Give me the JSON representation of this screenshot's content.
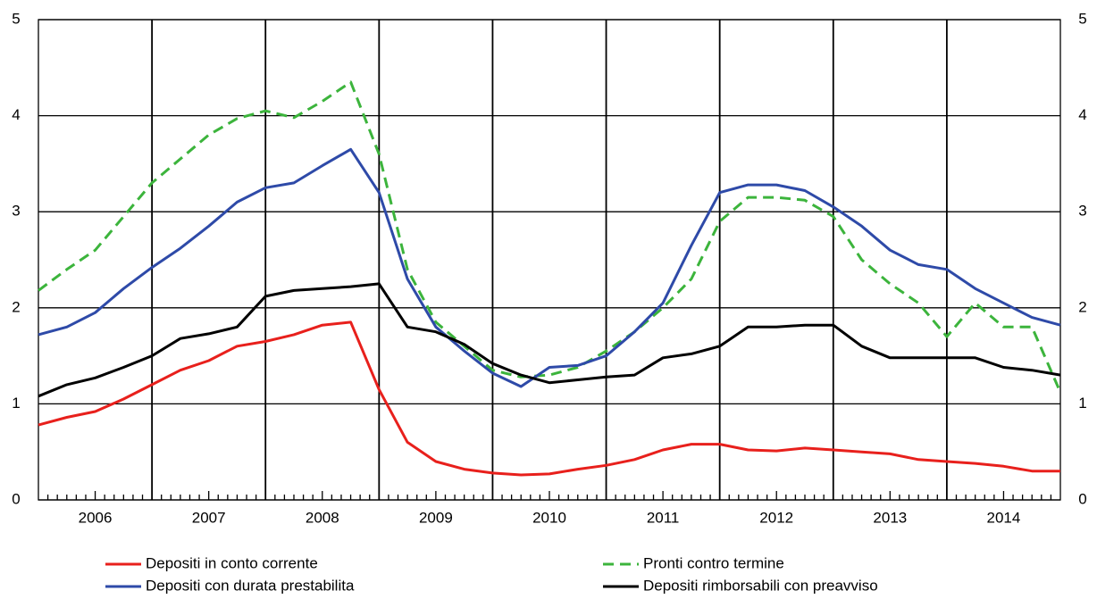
{
  "chart_data": {
    "type": "line",
    "x": [
      2006,
      2006.25,
      2006.5,
      2006.75,
      2007,
      2007.25,
      2007.5,
      2007.75,
      2008,
      2008.25,
      2008.5,
      2008.75,
      2009,
      2009.25,
      2009.5,
      2009.75,
      2010,
      2010.25,
      2010.5,
      2010.75,
      2011,
      2011.25,
      2011.5,
      2011.75,
      2012,
      2012.25,
      2012.5,
      2012.75,
      2013,
      2013.25,
      2013.5,
      2013.75,
      2014,
      2014.25,
      2014.5,
      2014.75,
      2015
    ],
    "xlim": [
      2006,
      2015
    ],
    "xticks": [
      {
        "value": 2006.5,
        "label": "2006"
      },
      {
        "value": 2007.5,
        "label": "2007"
      },
      {
        "value": 2008.5,
        "label": "2008"
      },
      {
        "value": 2009.5,
        "label": "2009"
      },
      {
        "value": 2010.5,
        "label": "2010"
      },
      {
        "value": 2011.5,
        "label": "2011"
      },
      {
        "value": 2012.5,
        "label": "2012"
      },
      {
        "value": 2013.5,
        "label": "2013"
      },
      {
        "value": 2014.5,
        "label": "2014"
      }
    ],
    "ylim": [
      0,
      5
    ],
    "yticks": [
      0,
      1,
      2,
      3,
      4,
      5
    ],
    "grid": true,
    "series": [
      {
        "name": "Depositi in conto corrente",
        "color": "#e8201c",
        "dash": false,
        "values": [
          0.78,
          0.86,
          0.92,
          1.05,
          1.2,
          1.35,
          1.45,
          1.6,
          1.65,
          1.72,
          1.82,
          1.85,
          1.15,
          0.6,
          0.4,
          0.32,
          0.28,
          0.26,
          0.27,
          0.32,
          0.36,
          0.42,
          0.52,
          0.58,
          0.58,
          0.52,
          0.51,
          0.54,
          0.52,
          0.5,
          0.48,
          0.42,
          0.4,
          0.38,
          0.35,
          0.3,
          0.3
        ]
      },
      {
        "name": "Pronti contro termine",
        "color": "#3cb43c",
        "dash": true,
        "values": [
          2.18,
          2.4,
          2.6,
          2.95,
          3.3,
          3.55,
          3.8,
          3.97,
          4.05,
          3.98,
          4.15,
          4.35,
          3.6,
          2.4,
          1.85,
          1.6,
          1.35,
          1.28,
          1.3,
          1.38,
          1.55,
          1.75,
          2.0,
          2.3,
          2.9,
          3.15,
          3.15,
          3.12,
          2.95,
          2.5,
          2.25,
          2.05,
          1.7,
          2.05,
          1.8,
          1.8,
          1.12
        ]
      },
      {
        "name": "Depositi con durata prestabilita",
        "color": "#2e4aa8",
        "dash": false,
        "values": [
          1.72,
          1.8,
          1.95,
          2.2,
          2.42,
          2.62,
          2.85,
          3.1,
          3.25,
          3.3,
          3.48,
          3.65,
          3.2,
          2.3,
          1.8,
          1.55,
          1.32,
          1.18,
          1.38,
          1.4,
          1.5,
          1.75,
          2.05,
          2.65,
          3.2,
          3.28,
          3.28,
          3.22,
          3.05,
          2.85,
          2.6,
          2.45,
          2.4,
          2.2,
          2.05,
          1.9,
          1.82
        ]
      },
      {
        "name": "Depositi rimborsabili con preavviso",
        "color": "#000000",
        "dash": false,
        "values": [
          1.08,
          1.2,
          1.27,
          1.38,
          1.5,
          1.68,
          1.73,
          1.8,
          2.12,
          2.18,
          2.2,
          2.22,
          2.25,
          1.8,
          1.75,
          1.62,
          1.42,
          1.3,
          1.22,
          1.25,
          1.28,
          1.3,
          1.48,
          1.52,
          1.6,
          1.8,
          1.8,
          1.82,
          1.82,
          1.6,
          1.48,
          1.48,
          1.48,
          1.48,
          1.38,
          1.35,
          1.3
        ]
      }
    ]
  }
}
